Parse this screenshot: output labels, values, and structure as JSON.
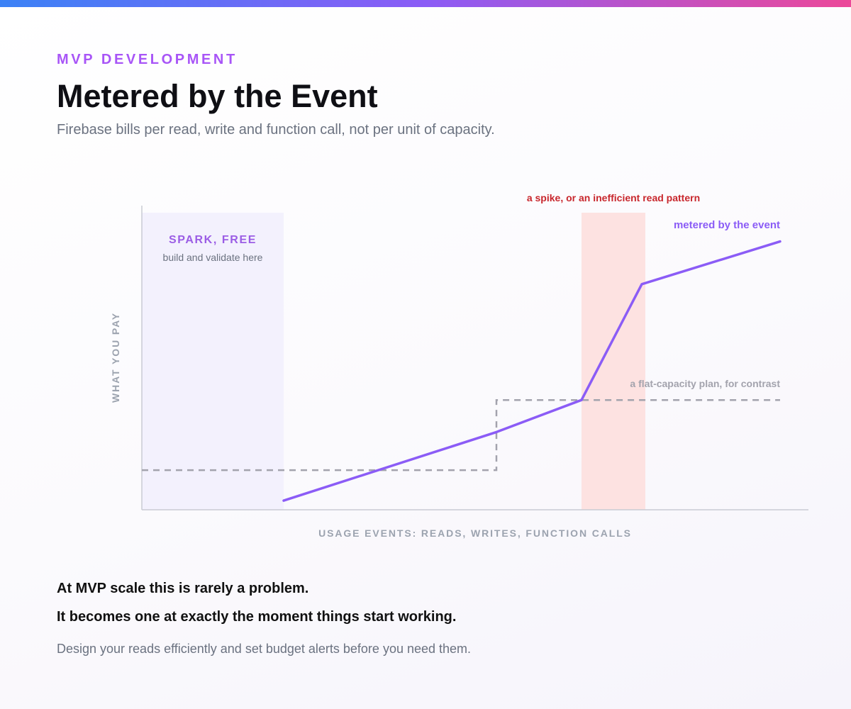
{
  "header": {
    "eyebrow": "MVP DEVELOPMENT",
    "title": "Metered by the Event",
    "subtitle": "Firebase bills per read, write and function call, not per unit of capacity."
  },
  "chart_data": {
    "type": "line",
    "title": "",
    "xlabel": "USAGE EVENTS: READS, WRITES, FUNCTION CALLS",
    "ylabel": "WHAT YOU PAY",
    "grid": false,
    "colors": {
      "metered": "#8b5cf6",
      "flat": "#a3a3ad",
      "spark_band": "#f3f1fd",
      "spike_band": "#fde2e1",
      "spike_label": "#c8272d",
      "spark_title": "#9b5de5",
      "spark_subtitle": "#6b7280",
      "axis": "#c9cbd3"
    },
    "series": [
      {
        "name": "metered by the event",
        "style": "solid",
        "points": [
          [
            20,
            3
          ],
          [
            50,
            25.5
          ],
          [
            62,
            36
          ],
          [
            70.5,
            74
          ],
          [
            90,
            88
          ]
        ]
      },
      {
        "name": "a flat-capacity plan, for contrast",
        "style": "dashed",
        "points": [
          [
            0,
            13
          ],
          [
            50,
            13
          ],
          [
            50,
            36
          ],
          [
            90,
            36
          ]
        ]
      }
    ],
    "regions": [
      {
        "id": "spark",
        "from": 0,
        "to": 20,
        "title": "SPARK, FREE",
        "subtitle": "build and validate here"
      },
      {
        "id": "spike",
        "from": 62,
        "to": 71,
        "label": "a spike, or an inefficient read pattern"
      }
    ]
  },
  "takeaways": {
    "line1": "At MVP scale this is rarely a problem.",
    "line2": "It becomes one at exactly the moment things start working.",
    "note": "Design your reads efficiently and set budget alerts before you need them."
  }
}
